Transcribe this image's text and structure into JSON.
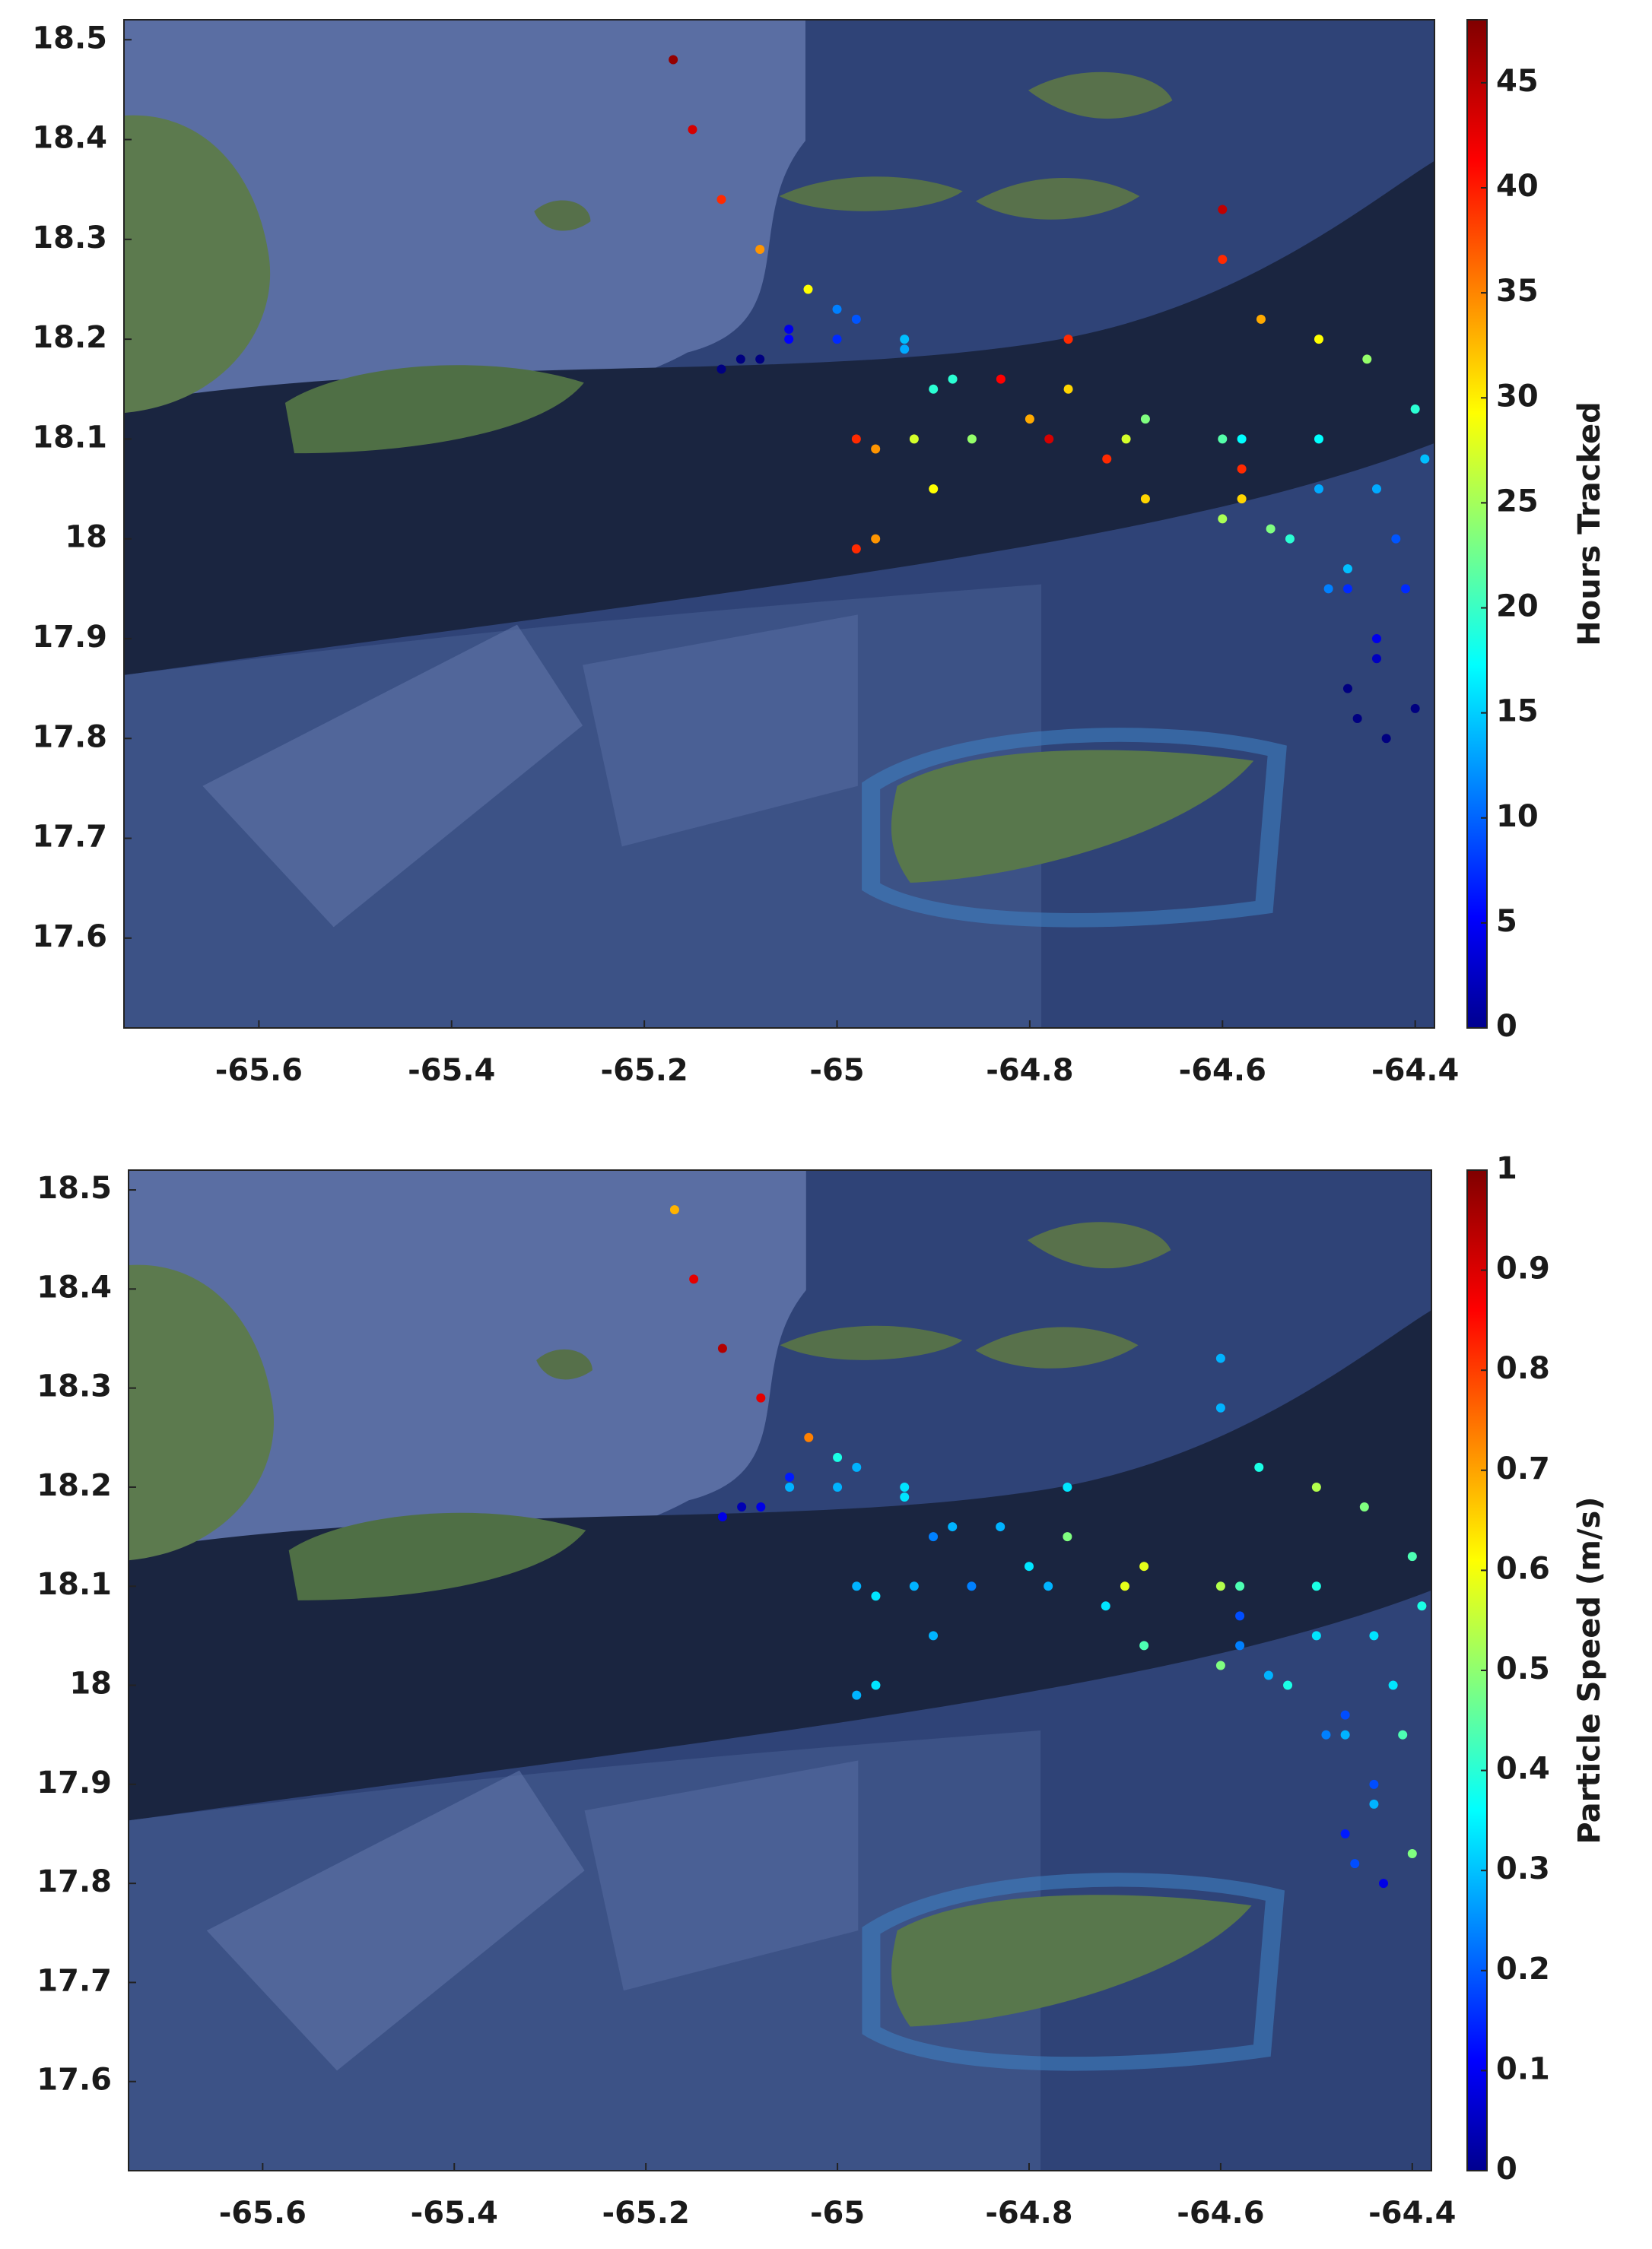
{
  "chart_data": [
    {
      "type": "scatter",
      "colormap": "jet",
      "xlim": [
        -65.74,
        -64.38
      ],
      "ylim": [
        17.51,
        18.52
      ],
      "xticks": [
        -65.6,
        -65.4,
        -65.2,
        -65,
        -64.8,
        -64.6,
        -64.4
      ],
      "yticks": [
        17.6,
        17.7,
        17.8,
        17.9,
        18,
        18.1,
        18.2,
        18.3,
        18.4,
        18.5
      ],
      "colorbar": {
        "label": "Hours Tracked",
        "lim": [
          0,
          48
        ],
        "ticks": [
          0,
          5,
          10,
          15,
          20,
          25,
          30,
          35,
          40,
          45
        ]
      },
      "series": [
        {
          "x": [
            -65.1,
            -65.05,
            -64.98,
            -64.93,
            -64.88,
            -64.86,
            -64.9,
            -64.96,
            -64.98
          ],
          "values": [
            18.18,
            18.21,
            18.22,
            18.2,
            18.16,
            18.1,
            18.05,
            18.0,
            17.99
          ],
          "c": [
            0,
            5,
            10,
            15,
            20,
            25,
            30,
            35,
            40
          ]
        },
        {
          "x": [
            -65.12,
            -65.05,
            -65.0,
            -65.03,
            -65.08,
            -65.12,
            -65.15,
            -65.17
          ],
          "values": [
            18.17,
            18.2,
            18.23,
            18.25,
            18.29,
            18.34,
            18.41,
            18.48
          ],
          "c": [
            0,
            6,
            12,
            30,
            35,
            40,
            44,
            47
          ]
        },
        {
          "x": [
            -65.08,
            -65.0,
            -64.93,
            -64.9,
            -64.92,
            -64.96,
            -64.98
          ],
          "values": [
            18.18,
            18.2,
            18.19,
            18.15,
            18.1,
            18.09,
            18.1
          ],
          "c": [
            0,
            8,
            14,
            20,
            28,
            35,
            40
          ]
        },
        {
          "x": [
            -64.43,
            -64.44,
            -64.42,
            -64.39,
            -64.4,
            -64.45,
            -64.5,
            -64.56,
            -64.6,
            -64.6
          ],
          "values": [
            17.8,
            17.9,
            18.0,
            18.08,
            18.13,
            18.18,
            18.2,
            18.22,
            18.28,
            18.33
          ],
          "c": [
            0,
            5,
            10,
            15,
            20,
            25,
            30,
            34,
            40,
            45
          ]
        },
        {
          "x": [
            -64.46,
            -64.47,
            -64.5,
            -64.58,
            -64.68,
            -64.76,
            -64.76
          ],
          "values": [
            17.82,
            17.95,
            18.05,
            18.1,
            18.12,
            18.15,
            18.2
          ],
          "c": [
            0,
            8,
            14,
            18,
            24,
            32,
            40
          ]
        },
        {
          "x": [
            -64.47,
            -64.49,
            -64.53,
            -64.6,
            -64.68,
            -64.72,
            -64.78
          ],
          "values": [
            17.85,
            17.95,
            18.0,
            18.02,
            18.04,
            18.08,
            18.1
          ],
          "c": [
            0,
            12,
            20,
            26,
            32,
            40,
            44
          ]
        },
        {
          "x": [
            -64.44,
            -64.47,
            -64.55,
            -64.58,
            -64.58
          ],
          "values": [
            17.88,
            17.97,
            18.01,
            18.04,
            18.07
          ],
          "c": [
            3,
            15,
            24,
            32,
            40
          ]
        },
        {
          "x": [
            -64.4,
            -64.41,
            -64.44,
            -64.5,
            -64.6,
            -64.7,
            -64.8,
            -64.83
          ],
          "values": [
            17.83,
            17.95,
            18.05,
            18.1,
            18.1,
            18.1,
            18.12,
            18.16
          ],
          "c": [
            0,
            8,
            14,
            18,
            22,
            28,
            34,
            42
          ]
        }
      ]
    },
    {
      "type": "scatter",
      "colormap": "jet",
      "xlim": [
        -65.74,
        -64.38
      ],
      "ylim": [
        17.51,
        18.52
      ],
      "xticks": [
        -65.6,
        -65.4,
        -65.2,
        -65,
        -64.8,
        -64.6,
        -64.4
      ],
      "yticks": [
        17.6,
        17.7,
        17.8,
        17.9,
        18,
        18.1,
        18.2,
        18.3,
        18.4,
        18.5
      ],
      "colorbar": {
        "label": "Particle Speed (m/s)",
        "lim": [
          0,
          1
        ],
        "ticks": [
          0,
          0.1,
          0.2,
          0.3,
          0.4,
          0.5,
          0.6,
          0.7,
          0.8,
          0.9,
          1
        ]
      },
      "series": [
        {
          "x": [
            -65.1,
            -65.05,
            -64.98,
            -64.93,
            -64.88,
            -64.86,
            -64.9,
            -64.96,
            -64.98
          ],
          "values": [
            18.18,
            18.21,
            18.22,
            18.2,
            18.16,
            18.1,
            18.05,
            18.0,
            17.99
          ],
          "c": [
            0.05,
            0.15,
            0.3,
            0.35,
            0.3,
            0.25,
            0.3,
            0.35,
            0.3
          ]
        },
        {
          "x": [
            -65.12,
            -65.05,
            -65.0,
            -65.03,
            -65.08,
            -65.12,
            -65.15,
            -65.17
          ],
          "values": [
            18.17,
            18.2,
            18.23,
            18.25,
            18.29,
            18.34,
            18.41,
            18.48
          ],
          "c": [
            0.1,
            0.3,
            0.4,
            0.75,
            0.9,
            0.95,
            0.9,
            0.7
          ]
        },
        {
          "x": [
            -65.08,
            -65.0,
            -64.93,
            -64.9,
            -64.92,
            -64.96,
            -64.98
          ],
          "values": [
            18.18,
            18.2,
            18.19,
            18.15,
            18.1,
            18.09,
            18.1
          ],
          "c": [
            0.1,
            0.3,
            0.35,
            0.25,
            0.3,
            0.35,
            0.3
          ]
        },
        {
          "x": [
            -64.43,
            -64.44,
            -64.42,
            -64.39,
            -64.4,
            -64.45,
            -64.5,
            -64.56,
            -64.6,
            -64.6
          ],
          "values": [
            17.8,
            17.9,
            18.0,
            18.08,
            18.13,
            18.18,
            18.2,
            18.22,
            18.28,
            18.33
          ],
          "c": [
            0.1,
            0.2,
            0.35,
            0.4,
            0.45,
            0.5,
            0.55,
            0.4,
            0.3,
            0.3
          ]
        },
        {
          "x": [
            -64.46,
            -64.47,
            -64.5,
            -64.58,
            -64.68,
            -64.76,
            -64.76
          ],
          "values": [
            17.82,
            17.95,
            18.05,
            18.1,
            18.12,
            18.15,
            18.2
          ],
          "c": [
            0.2,
            0.3,
            0.35,
            0.45,
            0.6,
            0.5,
            0.35
          ]
        },
        {
          "x": [
            -64.47,
            -64.49,
            -64.53,
            -64.6,
            -64.68,
            -64.72,
            -64.78
          ],
          "values": [
            17.85,
            17.95,
            18.0,
            18.02,
            18.04,
            18.08,
            18.1
          ],
          "c": [
            0.15,
            0.25,
            0.4,
            0.5,
            0.45,
            0.35,
            0.3
          ]
        },
        {
          "x": [
            -64.44,
            -64.47,
            -64.55,
            -64.58,
            -64.58
          ],
          "values": [
            17.88,
            17.97,
            18.01,
            18.04,
            18.07
          ],
          "c": [
            0.3,
            0.2,
            0.3,
            0.25,
            0.2
          ]
        },
        {
          "x": [
            -64.4,
            -64.41,
            -64.44,
            -64.5,
            -64.6,
            -64.7,
            -64.8,
            -64.83
          ],
          "values": [
            17.83,
            17.95,
            18.05,
            18.1,
            18.1,
            18.1,
            18.12,
            18.16
          ],
          "c": [
            0.5,
            0.45,
            0.35,
            0.4,
            0.55,
            0.6,
            0.35,
            0.3
          ]
        }
      ]
    }
  ]
}
